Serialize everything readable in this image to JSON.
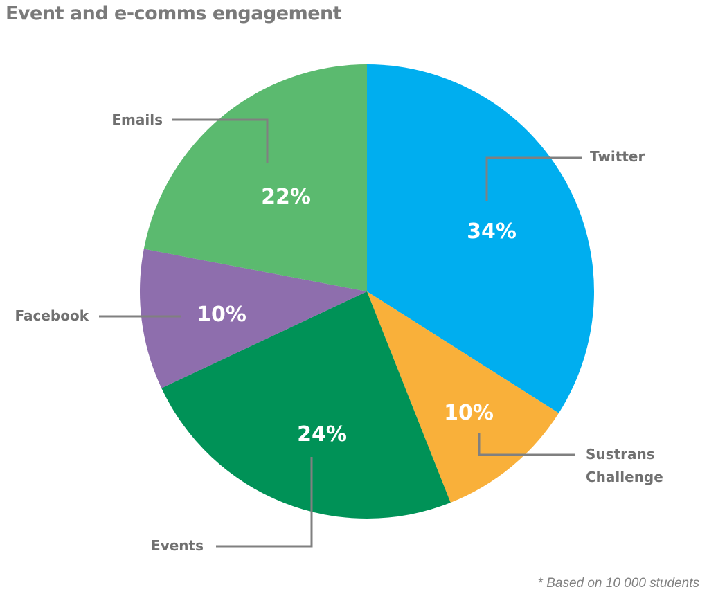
{
  "chart_data": {
    "type": "pie",
    "title": "Event and e-comms engagement",
    "footnote": "* Based on 10 000 students",
    "start": "12 o'clock, clockwise",
    "slices": [
      {
        "label": "Twitter",
        "value": 34,
        "value_label": "34%",
        "color": "#00aeef"
      },
      {
        "label": "Sustrans Challenge",
        "label_lines": [
          "Sustrans",
          "Challenge"
        ],
        "value": 10,
        "value_label": "10%",
        "color": "#f9b03a"
      },
      {
        "label": "Events",
        "value": 24,
        "value_label": "24%",
        "color": "#009257"
      },
      {
        "label": "Facebook",
        "value": 10,
        "value_label": "10%",
        "color": "#8e6ead"
      },
      {
        "label": "Emails",
        "value": 22,
        "value_label": "22%",
        "color": "#5bba6f"
      }
    ],
    "leader_color": "#808080"
  }
}
